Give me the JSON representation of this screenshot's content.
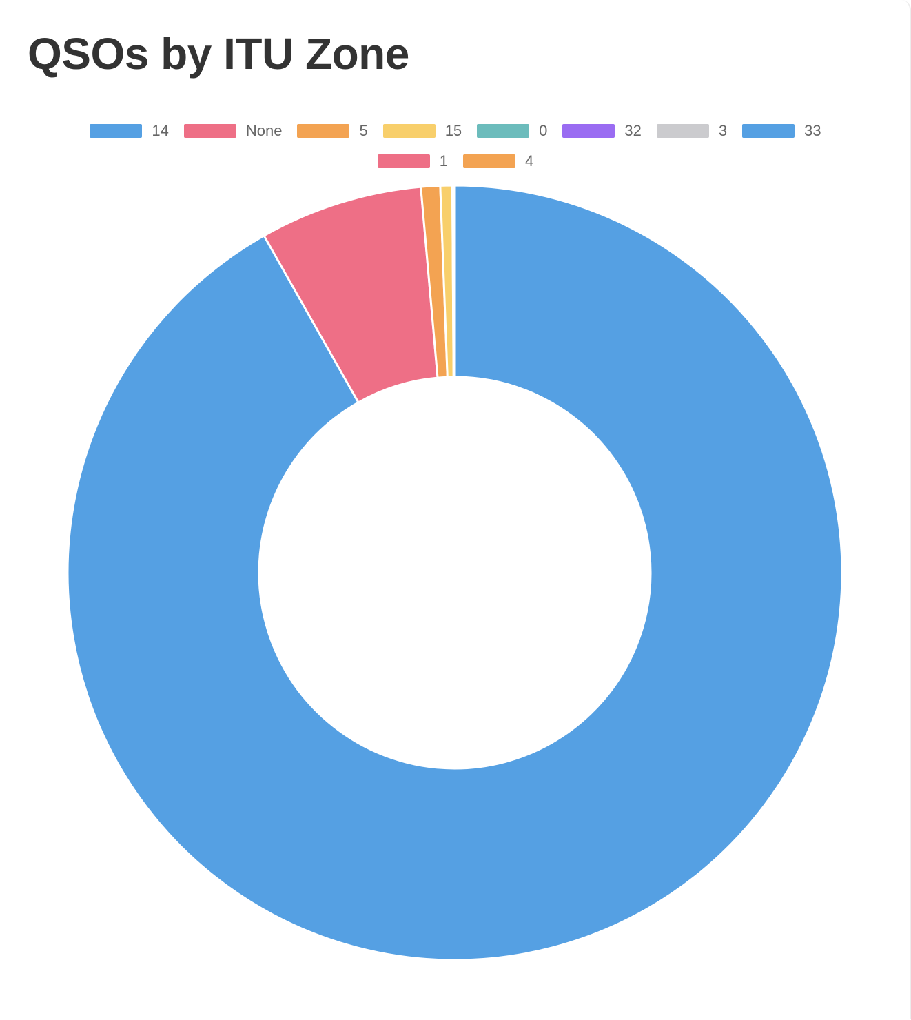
{
  "title": "QSOs by ITU Zone",
  "chart_data": {
    "type": "pie",
    "variant": "doughnut",
    "title": "QSOs by ITU Zone",
    "legend_position": "top",
    "categories": [
      "14",
      "None",
      "5",
      "15",
      "0",
      "32",
      "3",
      "33",
      "1",
      "4"
    ],
    "values": [
      918,
      68,
      8,
      5,
      0.3,
      0.2,
      0.2,
      0.1,
      0.1,
      0.1
    ],
    "colors": [
      "#55a0e3",
      "#ee6f86",
      "#f3a352",
      "#f8cf6b",
      "#6cbcbc",
      "#9a6cf2",
      "#cbcbce",
      "#55a0e3",
      "#ee6f86",
      "#f3a352"
    ]
  }
}
